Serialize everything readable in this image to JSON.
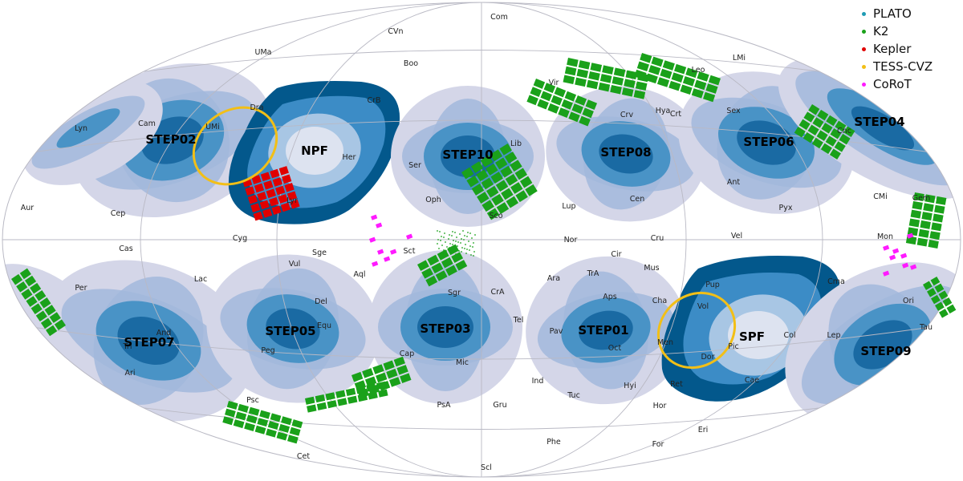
{
  "map": {
    "projection": "aitoff",
    "fields": [
      {
        "label": "STEP02"
      },
      {
        "label": "NPF"
      },
      {
        "label": "STEP10"
      },
      {
        "label": "STEP08"
      },
      {
        "label": "STEP06"
      },
      {
        "label": "STEP04"
      },
      {
        "label": "STEP07"
      },
      {
        "label": "STEP05"
      },
      {
        "label": "STEP03"
      },
      {
        "label": "STEP01"
      },
      {
        "label": "SPF"
      },
      {
        "label": "STEP09"
      }
    ],
    "constellations": [
      "Com",
      "CVn",
      "UMa",
      "Boo",
      "LMi",
      "Dra",
      "CrB",
      "Vir",
      "Leo",
      "Lyn",
      "Cam",
      "UMi",
      "Her",
      "Crv",
      "Hya",
      "Crt",
      "Sex",
      "Cnc",
      "Ser",
      "Lib",
      "Aur",
      "Cep",
      "Lyr",
      "Oph",
      "Sco",
      "Lup",
      "Cen",
      "Ant",
      "Pyx",
      "CMi",
      "Gem",
      "Cyg",
      "Cas",
      "Sge",
      "Sct",
      "Nor",
      "Cru",
      "Vel",
      "Mon",
      "Aql",
      "Vul",
      "Lac",
      "Per",
      "Del",
      "Equ",
      "Sgr",
      "CrA",
      "Ara",
      "TrA",
      "Cir",
      "Mus",
      "Cha",
      "Aps",
      "Vol",
      "Pup",
      "Cma",
      "Ori",
      "Tau",
      "Tri",
      "Ari",
      "And",
      "Peg",
      "Psc",
      "Cap",
      "Tel",
      "Pav",
      "Oct",
      "Men",
      "Dor",
      "Pic",
      "Col",
      "Lep",
      "Mic",
      "Ind",
      "Tuc",
      "Hyi",
      "Hor",
      "Ret",
      "Cae",
      "Eri",
      "PsA",
      "Gru",
      "Phe",
      "For",
      "Cet",
      "Scl"
    ]
  },
  "legend": [
    {
      "label": "PLATO",
      "color": "#1f9bb4"
    },
    {
      "label": "K2",
      "color": "#1aa11a"
    },
    {
      "label": "Kepler",
      "color": "#e00000"
    },
    {
      "label": "TESS-CVZ",
      "color": "#f2bf17"
    },
    {
      "label": "CoRoT",
      "color": "#ff1aff"
    }
  ],
  "colors": {
    "level1": "#d4d6e8",
    "level2": "#a2b8dc",
    "level3": "#4993c6",
    "level4": "#1a6aa3",
    "pole_dark": "#03588c",
    "pole_mid": "#3c8cc6",
    "pole_light": "#a8c6e4",
    "pole_center": "#dde3f0",
    "k2": "#1aa11a",
    "kepler": "#e00000",
    "tess": "#f2bf17",
    "corot": "#ff1aff"
  }
}
